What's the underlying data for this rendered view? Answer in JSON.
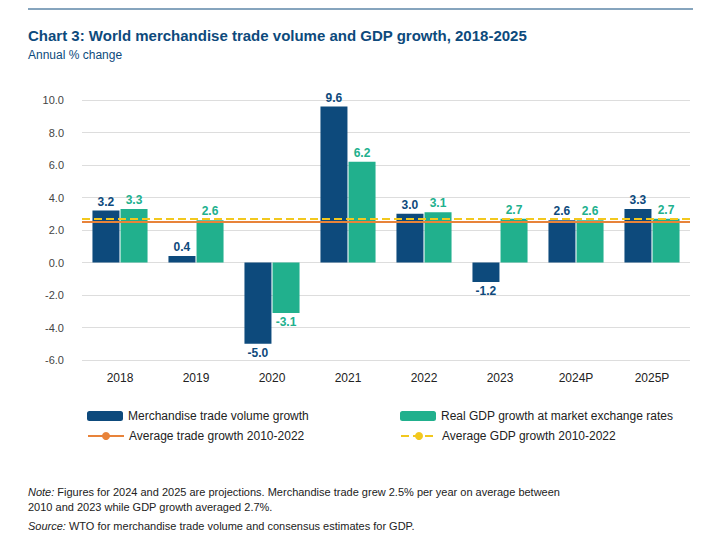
{
  "chart_data": {
    "type": "bar",
    "title": "Chart 3: World merchandise trade volume and GDP growth, 2018-2025",
    "subtitle": "Annual % change",
    "categories": [
      "2018",
      "2019",
      "2020",
      "2021",
      "2022",
      "2023",
      "2024P",
      "2025P"
    ],
    "series": [
      {
        "name": "Merchandise trade volume growth",
        "color": "#0d4a7c",
        "values": [
          3.2,
          0.4,
          -5.0,
          9.6,
          3.0,
          -1.2,
          2.6,
          3.3
        ],
        "value_labels": [
          "3.2",
          "0.4",
          "-5.0",
          "9.6",
          "3.0",
          "-1.2",
          "2.6",
          "3.3"
        ]
      },
      {
        "name": "Real GDP growth at market exchange rates",
        "color": "#21b08d",
        "values": [
          3.3,
          2.6,
          -3.1,
          6.2,
          3.1,
          2.7,
          2.6,
          2.7
        ]
      }
    ],
    "lines": [
      {
        "name": "Average trade growth 2010-2022",
        "value": 2.5,
        "color": "#e8833a",
        "line_style": "solid"
      },
      {
        "name": "Average GDP growth 2010-2022",
        "value": 2.7,
        "color": "#f2c81e",
        "line_style": "dashed"
      }
    ],
    "ylim": [
      -6,
      10
    ],
    "yticks": [
      {
        "value": -6,
        "label": "-6.0"
      },
      {
        "value": -4,
        "label": "-4.0"
      },
      {
        "value": -2,
        "label": "-2.0"
      },
      {
        "value": 0,
        "label": "0.0"
      },
      {
        "value": 2,
        "label": "2.0"
      },
      {
        "value": 4,
        "label": "4.0"
      },
      {
        "value": 6,
        "label": "6.0"
      },
      {
        "value": 8,
        "label": "8.0"
      },
      {
        "value": 10,
        "label": "10.0"
      }
    ],
    "grid": true,
    "data_labels": true,
    "legend": "bottom",
    "note": "Note: Figures for 2024 and 2025 are projections. Merchandise trade grew 2.5% per year on average between 2010 and 2023 while GDP growth averaged 2.7%.",
    "source": "Source: WTO for merchandise trade volume and consensus estimates for GDP."
  }
}
